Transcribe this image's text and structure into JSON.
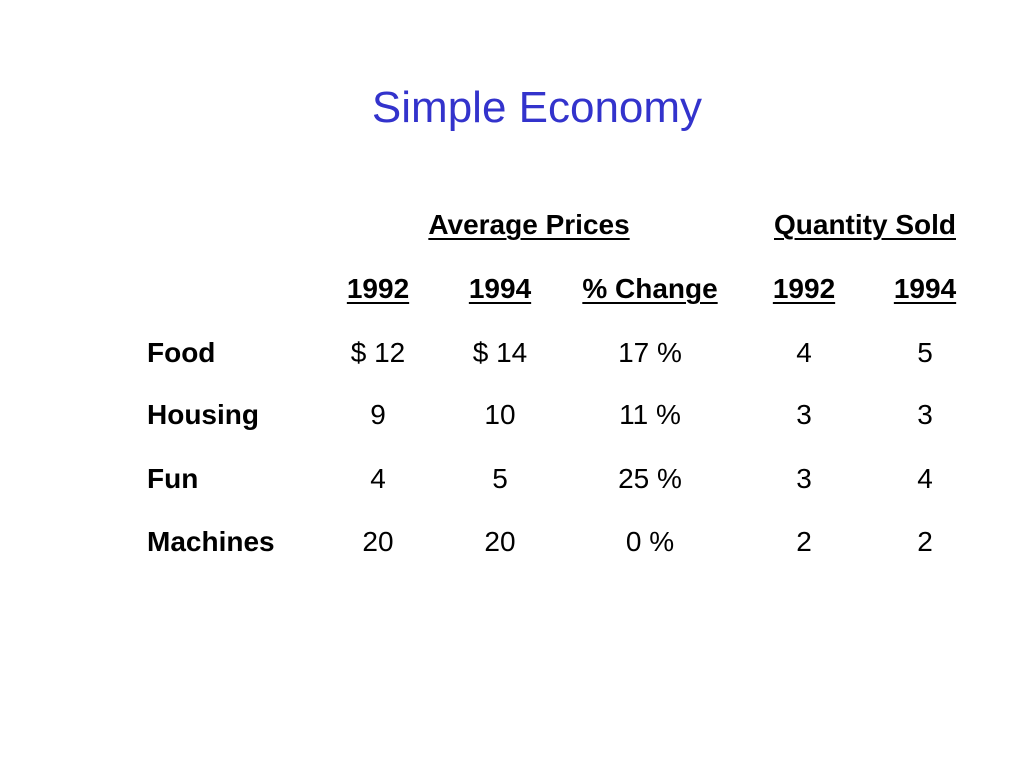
{
  "title": "Simple Economy",
  "colors": {
    "title": "#3333cc",
    "text": "#000000",
    "background": "#ffffff"
  },
  "table": {
    "group_headers": [
      "Average Prices",
      "Quantity Sold"
    ],
    "column_headers": [
      "1992",
      "1994",
      "% Change",
      "1992",
      "1994"
    ],
    "rows": [
      {
        "label": "Food",
        "values": [
          "$ 12",
          "$ 14",
          "17 %",
          "4",
          "5"
        ]
      },
      {
        "label": "Housing",
        "values": [
          "9",
          "10",
          "11 %",
          "3",
          "3"
        ]
      },
      {
        "label": "Fun",
        "values": [
          "4",
          "5",
          "25 %",
          "3",
          "4"
        ]
      },
      {
        "label": "Machines",
        "values": [
          "20",
          "20",
          "0 %",
          "2",
          "2"
        ]
      }
    ]
  }
}
